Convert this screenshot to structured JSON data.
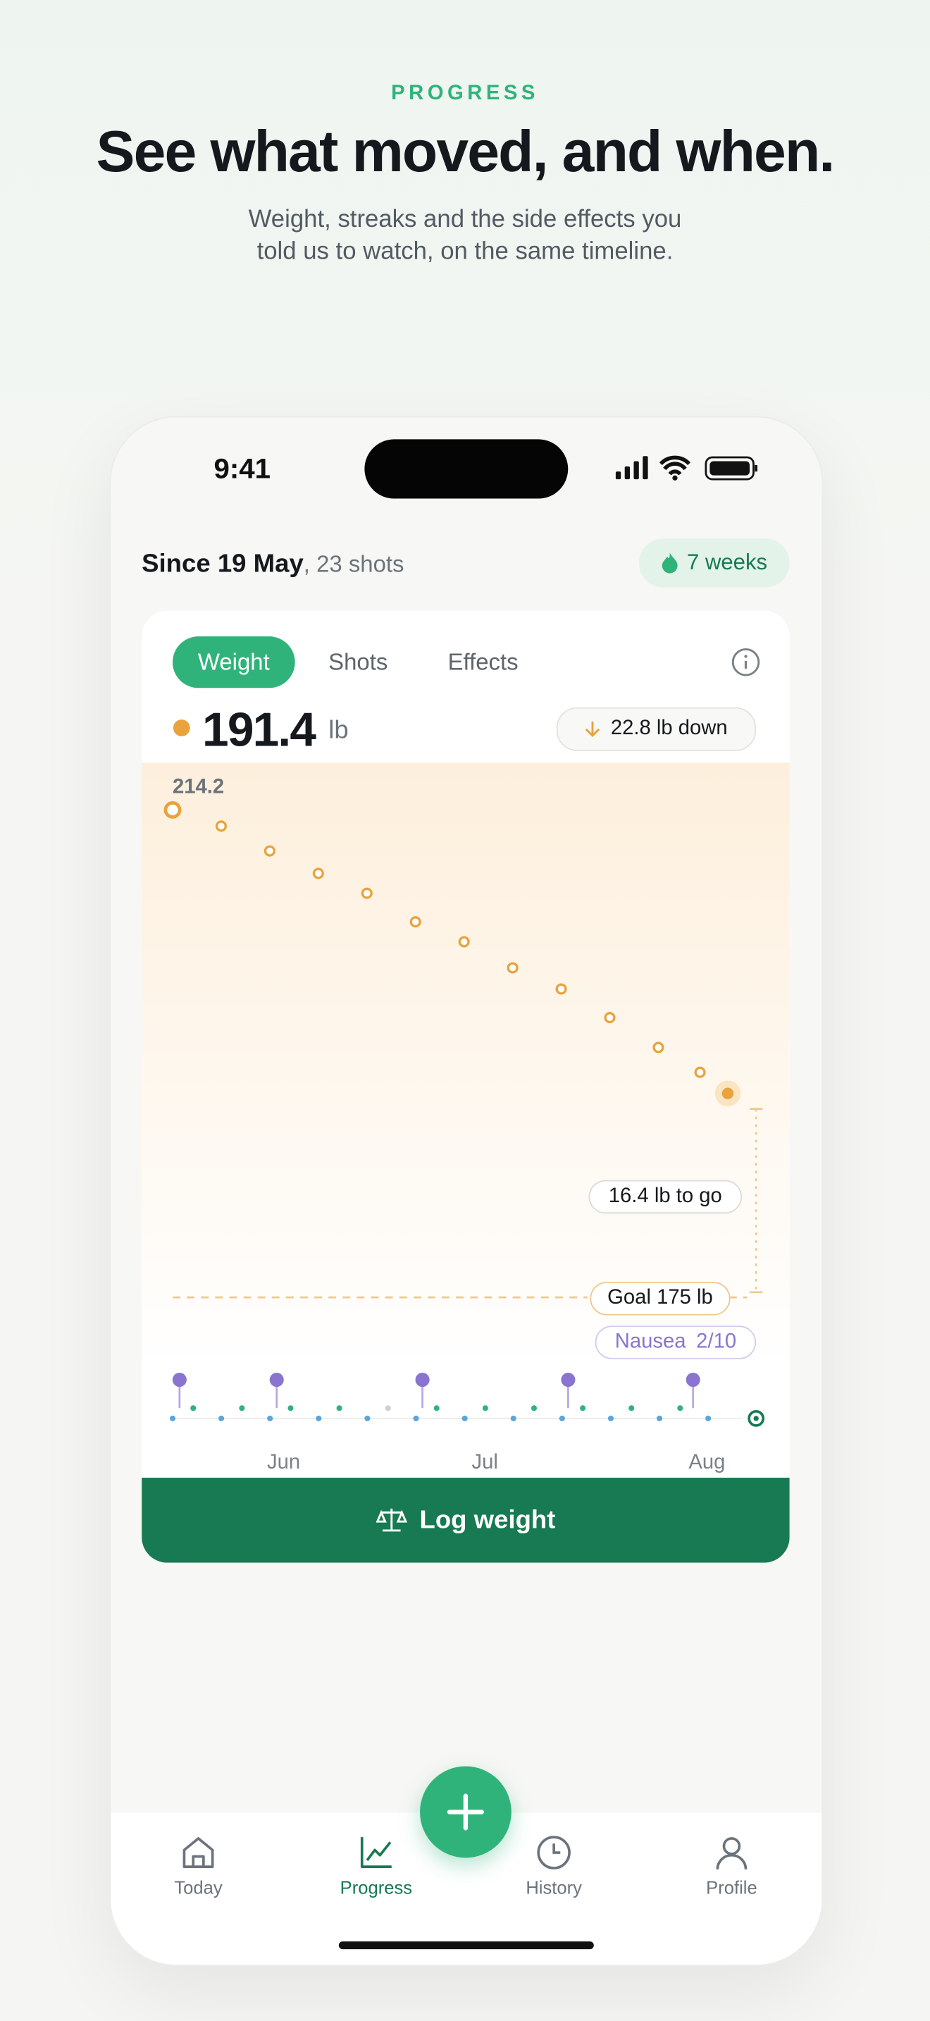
{
  "header": {
    "eyebrow": "PROGRESS",
    "title": "See what moved, and when.",
    "subtitle": "Weight, streaks and the side effects you told us to watch, on the same timeline."
  },
  "status": {
    "time": "9:41"
  },
  "summary": {
    "since": "Since 19 May",
    "shots": ", 23 shots",
    "streak": "7 weeks"
  },
  "card": {
    "tabs": [
      "Weight",
      "Shots",
      "Effects"
    ],
    "unit": "lb",
    "change": "22.8 lb down",
    "to_go": "16.4 lb to go",
    "goal_label": "Goal 175 lb",
    "effect": {
      "name": "Nausea",
      "score": "2/10"
    },
    "action": "Log weight",
    "chart": {
      "type": "scatter",
      "color": "#e8a33d",
      "x": [
        0,
        7,
        14,
        21,
        28,
        35,
        42,
        49,
        56,
        63,
        70,
        76,
        80
      ],
      "values": [
        214.2,
        212.9,
        210.9,
        209.1,
        207.5,
        205.2,
        203.6,
        201.5,
        199.8,
        197.5,
        195.1,
        193.1,
        191.4
      ],
      "xlim": [
        0,
        80
      ],
      "ylim": [
        172,
        218
      ],
      "xticks": [
        {
          "value": 16,
          "label": "Jun"
        },
        {
          "value": 45,
          "label": "Jul"
        },
        {
          "value": 77,
          "label": "Aug"
        }
      ],
      "goal": 175,
      "effect_days": [
        1,
        15,
        36,
        57,
        75
      ]
    }
  },
  "nav": [
    "Today",
    "Progress",
    "History",
    "Profile"
  ]
}
